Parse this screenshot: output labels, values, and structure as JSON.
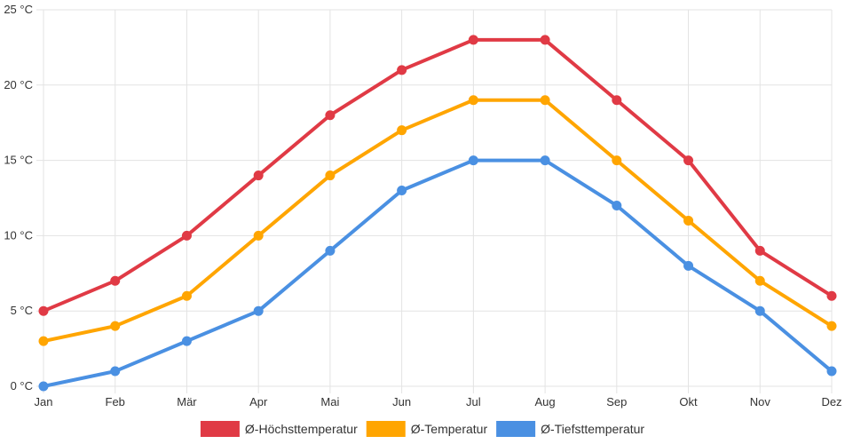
{
  "chart_data": {
    "type": "line",
    "title": "",
    "xlabel": "",
    "ylabel": "",
    "categories": [
      "Jan",
      "Feb",
      "Mär",
      "Apr",
      "Mai",
      "Jun",
      "Jul",
      "Aug",
      "Sep",
      "Okt",
      "Nov",
      "Dez"
    ],
    "y_tick_labels": [
      "0 °C",
      "5 °C",
      "10 °C",
      "15 °C",
      "20 °C",
      "25 °C"
    ],
    "y_ticks": [
      0,
      5,
      10,
      15,
      20,
      25
    ],
    "ylim": [
      0,
      25
    ],
    "grid": true,
    "legend_position": "bottom",
    "series": [
      {
        "name": "Ø-Höchsttemperatur",
        "color": "#e03a45",
        "values": [
          5,
          7,
          10,
          14,
          18,
          21,
          23,
          23,
          19,
          15,
          9,
          6
        ]
      },
      {
        "name": "Ø-Temperatur",
        "color": "#ffa500",
        "values": [
          3,
          4,
          6,
          10,
          14,
          17,
          19,
          19,
          15,
          11,
          7,
          4
        ]
      },
      {
        "name": "Ø-Tiefsttemperatur",
        "color": "#4a90e2",
        "values": [
          0,
          1,
          3,
          5,
          9,
          13,
          15,
          15,
          12,
          8,
          5,
          1
        ]
      }
    ]
  }
}
